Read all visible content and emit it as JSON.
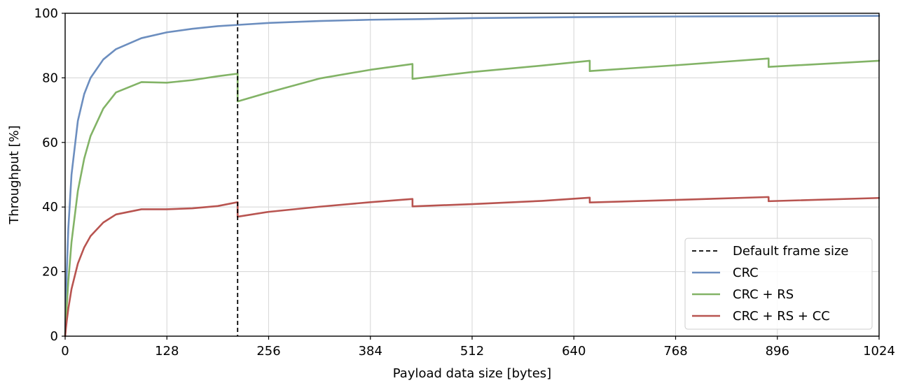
{
  "chart_data": {
    "type": "line",
    "title": "",
    "xlabel": "Payload data size [bytes]",
    "ylabel": "Throughput [%]",
    "xlim": [
      0,
      1024
    ],
    "ylim": [
      0,
      100
    ],
    "xticks": [
      0,
      128,
      256,
      384,
      512,
      640,
      768,
      896,
      1024
    ],
    "yticks": [
      0,
      20,
      40,
      60,
      80,
      100
    ],
    "grid": true,
    "legend_position": "lower-right",
    "vertical_line": {
      "name": "Default frame size",
      "x": 217,
      "style": "dashed",
      "color": "#000000"
    },
    "series": [
      {
        "name": "CRC",
        "color": "#6c8ebf",
        "x": [
          0,
          1,
          2,
          4,
          8,
          16,
          24,
          32,
          48,
          64,
          96,
          128,
          160,
          192,
          217,
          256,
          320,
          384,
          448,
          512,
          640,
          768,
          896,
          1024
        ],
        "y": [
          0,
          11.1,
          20,
          33.3,
          50,
          66.7,
          75,
          80,
          85.7,
          88.9,
          92.3,
          94.1,
          95.2,
          96,
          96.4,
          97,
          97.6,
          98,
          98.2,
          98.5,
          98.8,
          99,
          99.1,
          99.2
        ]
      },
      {
        "name": "CRC + RS",
        "color": "#82b366",
        "x": [
          0,
          1,
          2,
          4,
          8,
          16,
          24,
          32,
          48,
          64,
          96,
          128,
          160,
          192,
          217,
          217,
          256,
          320,
          384,
          437,
          437,
          512,
          600,
          660,
          660,
          768,
          885,
          885,
          1024
        ],
        "y": [
          0,
          4.9,
          9.3,
          17,
          29.1,
          45,
          55,
          62,
          70.5,
          75.5,
          78.7,
          78.5,
          79.3,
          80.5,
          81.3,
          72.7,
          75.5,
          79.8,
          82.5,
          84.3,
          79.7,
          81.8,
          83.8,
          85.3,
          82.1,
          83.9,
          86,
          83.4,
          85.3
        ]
      },
      {
        "name": "CRC + RS + CC",
        "color": "#b85450",
        "x": [
          0,
          1,
          2,
          4,
          8,
          16,
          24,
          32,
          48,
          64,
          96,
          128,
          160,
          192,
          217,
          217,
          256,
          320,
          384,
          437,
          437,
          512,
          600,
          660,
          660,
          768,
          885,
          885,
          1024
        ],
        "y": [
          0,
          2.5,
          4.7,
          8.5,
          14.6,
          22.5,
          27.5,
          31,
          35.2,
          37.7,
          39.3,
          39.3,
          39.6,
          40.3,
          41.5,
          37,
          38.5,
          40.1,
          41.5,
          42.5,
          40.2,
          40.9,
          41.9,
          42.9,
          41.4,
          42.2,
          43.1,
          41.8,
          42.8
        ]
      }
    ]
  }
}
